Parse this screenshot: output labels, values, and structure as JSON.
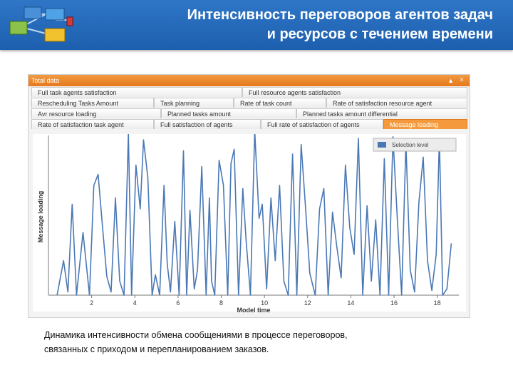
{
  "header": {
    "title_line1": "Интенсивность переговоров агентов задач",
    "title_line2": "и ресурсов с течением времени"
  },
  "window": {
    "title": "Total data",
    "pin_icon": "pin-icon",
    "close_icon": "close-icon",
    "tab_rows": [
      [
        "Full task agents satisfaction",
        "Full resource agents satisfaction"
      ],
      [
        "Rescheduling Tasks Amount",
        "Task planning",
        "Rate of task count",
        "Rate of satisfaction resource agent"
      ],
      [
        "Avr resource loading",
        "Planned tasks amount",
        "Planned tasks amount differential"
      ],
      [
        "Rate of satisfaction task agent",
        "Full satisfaction of agents",
        "Full rate of satisfaction of agents",
        "Message loading"
      ]
    ],
    "active_tab": "Message loading"
  },
  "chart_data": {
    "type": "line",
    "xlabel": "Model time",
    "ylabel": "Message loading",
    "xlim": [
      0,
      19
    ],
    "ylim": [
      0,
      1
    ],
    "xticks": [
      2,
      4,
      6,
      8,
      10,
      12,
      14,
      16,
      18
    ],
    "xtick_labels": [
      "2",
      "4",
      "6",
      "8",
      "10",
      "12",
      "14",
      "16",
      "18"
    ],
    "grid": false,
    "legend": {
      "position": "top-right",
      "entries": [
        "Selection level"
      ]
    },
    "series": [
      {
        "name": "Selection level",
        "color": "#4a78b5",
        "x": [
          0.4,
          0.7,
          0.9,
          1.1,
          1.3,
          1.6,
          1.9,
          2.1,
          2.3,
          2.5,
          2.7,
          2.9,
          3.1,
          3.3,
          3.5,
          3.7,
          3.85,
          4.05,
          4.25,
          4.4,
          4.6,
          4.8,
          4.95,
          5.15,
          5.35,
          5.5,
          5.65,
          5.85,
          6.05,
          6.25,
          6.4,
          6.55,
          6.75,
          6.9,
          7.1,
          7.3,
          7.45,
          7.55,
          7.7,
          7.9,
          8.1,
          8.3,
          8.45,
          8.6,
          8.8,
          9.0,
          9.15,
          9.35,
          9.55,
          9.75,
          9.9,
          10.1,
          10.3,
          10.5,
          10.7,
          10.9,
          11.1,
          11.3,
          11.5,
          11.7,
          11.9,
          12.1,
          12.35,
          12.55,
          12.75,
          12.95,
          13.15,
          13.35,
          13.55,
          13.75,
          13.95,
          14.15,
          14.35,
          14.55,
          14.75,
          14.95,
          15.15,
          15.35,
          15.55,
          15.75,
          15.95,
          16.15,
          16.35,
          16.55,
          16.75,
          16.95,
          17.15,
          17.35,
          17.55,
          17.75,
          17.95,
          18.1,
          18.25,
          18.45,
          18.65
        ],
        "y": [
          0.0,
          0.22,
          0.02,
          0.58,
          0.0,
          0.4,
          0.0,
          0.7,
          0.77,
          0.44,
          0.12,
          0.02,
          0.62,
          0.09,
          0.0,
          1.03,
          0.0,
          0.83,
          0.55,
          0.99,
          0.75,
          0.0,
          0.13,
          0.0,
          0.7,
          0.2,
          0.02,
          0.47,
          0.0,
          0.92,
          0.0,
          0.54,
          0.04,
          0.16,
          0.82,
          0.0,
          0.62,
          0.09,
          0.0,
          0.86,
          0.7,
          0.0,
          0.84,
          0.93,
          0.0,
          0.68,
          0.35,
          0.0,
          1.05,
          0.49,
          0.58,
          0.04,
          0.62,
          0.22,
          0.7,
          0.09,
          0.0,
          0.9,
          0.0,
          0.96,
          0.56,
          0.14,
          0.0,
          0.55,
          0.68,
          0.0,
          0.53,
          0.31,
          0.11,
          0.83,
          0.43,
          0.26,
          1.0,
          0.0,
          0.57,
          0.09,
          0.48,
          0.0,
          0.87,
          0.0,
          1.01,
          0.49,
          0.0,
          0.97,
          0.16,
          0.02,
          0.59,
          0.88,
          0.22,
          0.03,
          0.26,
          1.0,
          0.0,
          0.04,
          0.33
        ]
      }
    ]
  },
  "caption": {
    "line1": "Динамика интенсивности обмена сообщениями в процессе переговоров,",
    "line2": "связанных с приходом и перепланированием заказов."
  }
}
